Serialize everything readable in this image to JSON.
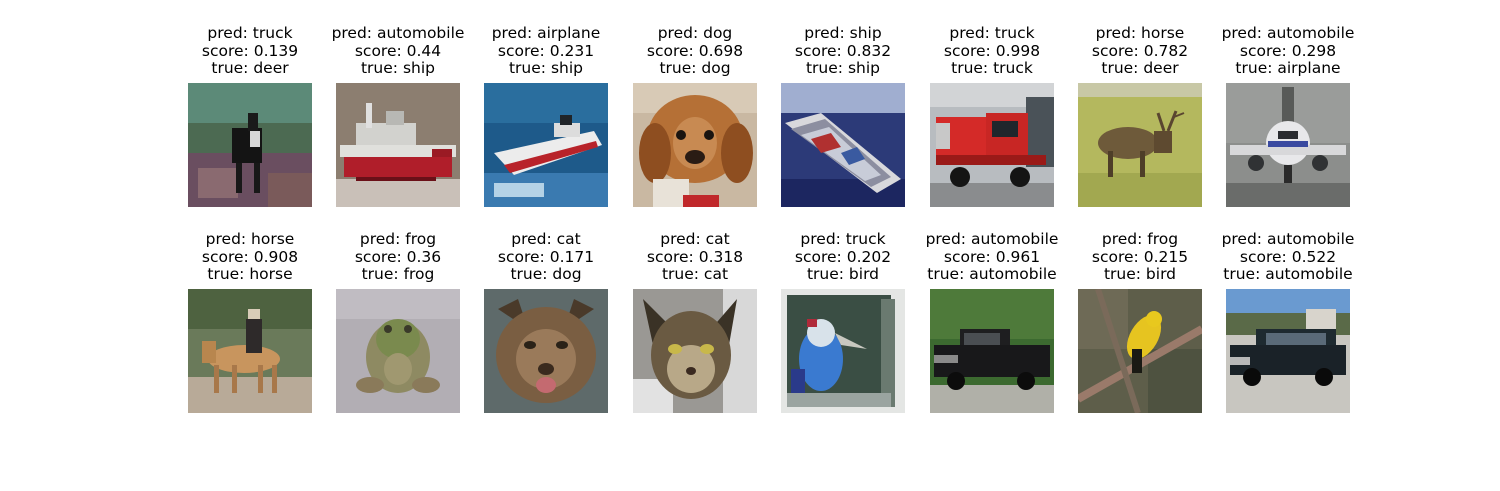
{
  "figure": {
    "cells": [
      {
        "pred": "pred: truck",
        "score": "score: 0.139",
        "true": "true: deer",
        "icon": "deer-photo-thumbnail"
      },
      {
        "pred": "pred: automobile",
        "score": "score: 0.44",
        "true": "true: ship",
        "icon": "ship-photo-thumbnail"
      },
      {
        "pred": "pred: airplane",
        "score": "score: 0.231",
        "true": "true: ship",
        "icon": "ship-photo-thumbnail"
      },
      {
        "pred": "pred: dog",
        "score": "score: 0.698",
        "true": "true: dog",
        "icon": "dog-photo-thumbnail"
      },
      {
        "pred": "pred: ship",
        "score": "score: 0.832",
        "true": "true: ship",
        "icon": "ship-photo-thumbnail"
      },
      {
        "pred": "pred: truck",
        "score": "score: 0.998",
        "true": "true: truck",
        "icon": "truck-photo-thumbnail"
      },
      {
        "pred": "pred: horse",
        "score": "score: 0.782",
        "true": "true: deer",
        "icon": "deer-photo-thumbnail"
      },
      {
        "pred": "pred: automobile",
        "score": "score: 0.298",
        "true": "true: airplane",
        "icon": "airplane-photo-thumbnail"
      },
      {
        "pred": "pred: horse",
        "score": "score: 0.908",
        "true": "true: horse",
        "icon": "horse-photo-thumbnail"
      },
      {
        "pred": "pred: frog",
        "score": "score: 0.36",
        "true": "true: frog",
        "icon": "frog-photo-thumbnail"
      },
      {
        "pred": "pred: cat",
        "score": "score: 0.171",
        "true": "true: dog",
        "icon": "dog-photo-thumbnail"
      },
      {
        "pred": "pred: cat",
        "score": "score: 0.318",
        "true": "true: cat",
        "icon": "cat-photo-thumbnail"
      },
      {
        "pred": "pred: truck",
        "score": "score: 0.202",
        "true": "true: bird",
        "icon": "bird-photo-thumbnail"
      },
      {
        "pred": "pred: automobile",
        "score": "score: 0.961",
        "true": "true: automobile",
        "icon": "automobile-photo-thumbnail"
      },
      {
        "pred": "pred: frog",
        "score": "score: 0.215",
        "true": "true: bird",
        "icon": "bird-photo-thumbnail"
      },
      {
        "pred": "pred: automobile",
        "score": "score: 0.522",
        "true": "true: automobile",
        "icon": "automobile-photo-thumbnail"
      }
    ]
  },
  "colors": {
    "background": "#ffffff",
    "text": "#000000"
  }
}
